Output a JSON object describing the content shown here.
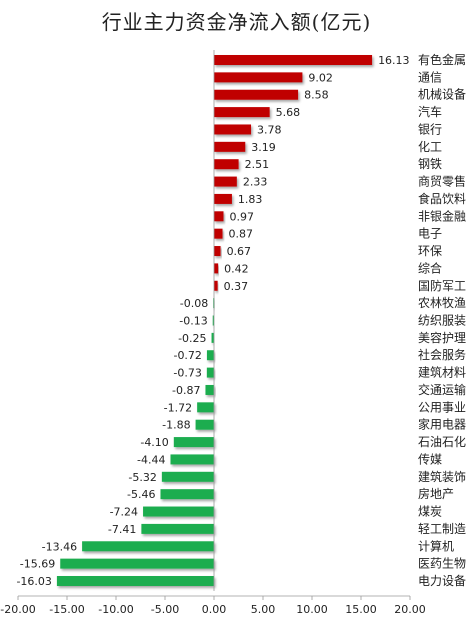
{
  "chart_data": {
    "type": "bar",
    "orientation": "horizontal",
    "title": "行业主力资金净流入额(亿元)",
    "categories": [
      "有色金属",
      "通信",
      "机械设备",
      "汽车",
      "银行",
      "化工",
      "钢铁",
      "商贸零售",
      "食品饮料",
      "非银金融",
      "电子",
      "环保",
      "综合",
      "国防军工",
      "农林牧渔",
      "纺织服装",
      "美容护理",
      "社会服务",
      "建筑材料",
      "交通运输",
      "公用事业",
      "家用电器",
      "石油石化",
      "传媒",
      "建筑装饰",
      "房地产",
      "煤炭",
      "轻工制造",
      "计算机",
      "医药生物",
      "电力设备"
    ],
    "values": [
      16.13,
      9.02,
      8.58,
      5.68,
      3.78,
      3.19,
      2.51,
      2.33,
      1.83,
      0.97,
      0.87,
      0.67,
      0.42,
      0.37,
      -0.08,
      -0.13,
      -0.25,
      -0.72,
      -0.73,
      -0.87,
      -1.72,
      -1.88,
      -4.1,
      -4.44,
      -5.32,
      -5.46,
      -7.24,
      -7.41,
      -13.46,
      -15.69,
      -16.03
    ],
    "value_labels": [
      "16.13",
      "9.02",
      "8.58",
      "5.68",
      "3.78",
      "3.19",
      "2.51",
      "2.33",
      "1.83",
      "0.97",
      "0.87",
      "0.67",
      "0.42",
      "0.37",
      "-0.08",
      "-0.13",
      "-0.25",
      "-0.72",
      "-0.73",
      "-0.87",
      "-1.72",
      "-1.88",
      "-4.10",
      "-4.44",
      "-5.32",
      "-5.46",
      "-7.24",
      "-7.41",
      "-13.46",
      "-15.69",
      "-16.03"
    ],
    "xlim": [
      -20,
      20
    ],
    "xticks": [
      -20,
      -15,
      -10,
      -5,
      0,
      5,
      10,
      15,
      20
    ],
    "xtick_labels": [
      "-20.00",
      "-15.00",
      "-10.00",
      "-5.00",
      "0.00",
      "5.00",
      "10.00",
      "15.00",
      "20.00"
    ],
    "xlabel": "",
    "ylabel": "",
    "grid": false,
    "legend": "none",
    "colors": {
      "positive": "#c00000",
      "negative": "#1fad50",
      "axis": "#9a9a9a",
      "text": "#222222"
    }
  }
}
